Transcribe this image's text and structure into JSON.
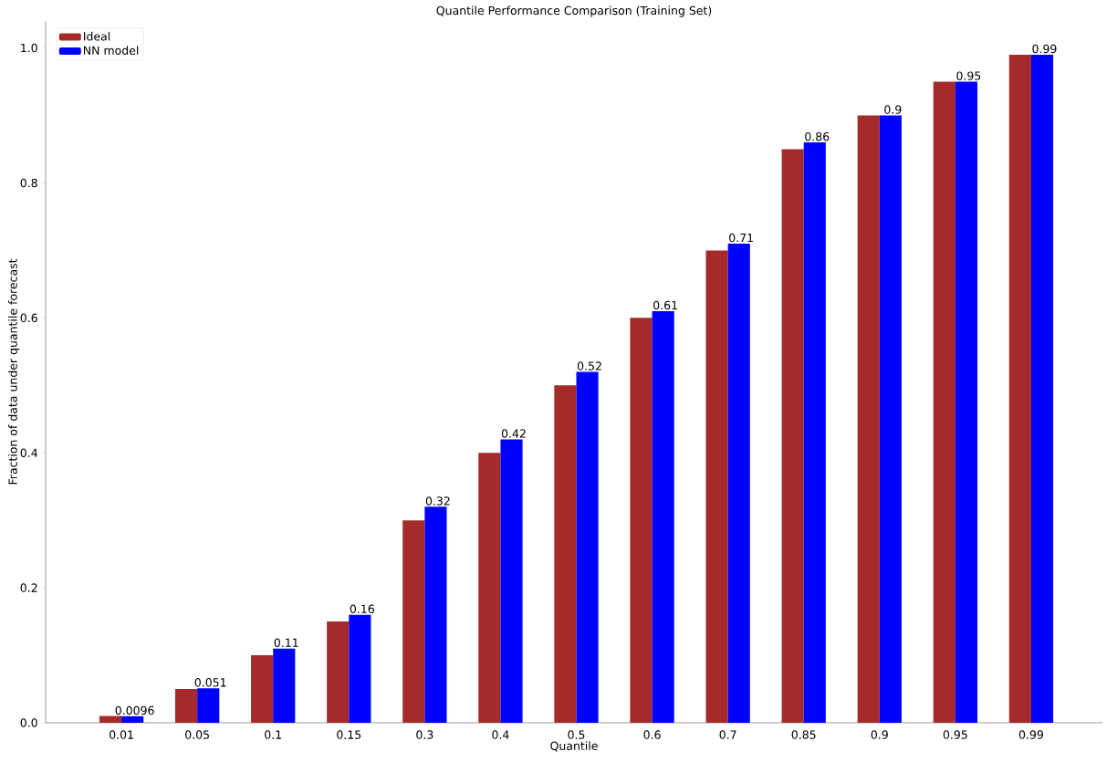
{
  "chart_data": {
    "type": "bar",
    "title": "Quantile Performance Comparison (Training Set)",
    "xlabel": "Quantile",
    "ylabel": "Fraction of data under quantile forecast",
    "categories": [
      "0.01",
      "0.05",
      "0.1",
      "0.15",
      "0.3",
      "0.4",
      "0.5",
      "0.6",
      "0.7",
      "0.85",
      "0.9",
      "0.95",
      "0.99"
    ],
    "series": [
      {
        "name": "Ideal",
        "color": "#a52a2a",
        "values": [
          0.01,
          0.05,
          0.1,
          0.15,
          0.3,
          0.4,
          0.5,
          0.6,
          0.7,
          0.85,
          0.9,
          0.95,
          0.99
        ]
      },
      {
        "name": "NN model",
        "color": "#0000ff",
        "values": [
          0.0096,
          0.051,
          0.11,
          0.16,
          0.32,
          0.42,
          0.52,
          0.61,
          0.71,
          0.86,
          0.9,
          0.95,
          0.99
        ],
        "value_labels": [
          "0.0096",
          "0.051",
          "0.11",
          "0.16",
          "0.32",
          "0.42",
          "0.52",
          "0.61",
          "0.71",
          "0.86",
          "0.9",
          "0.95",
          "0.99"
        ]
      }
    ],
    "ylim": [
      0,
      1.04
    ],
    "yticks": [
      {
        "value": 0,
        "label": "0.0"
      },
      0.2,
      0.4,
      0.6,
      0.8,
      {
        "value": 1,
        "label": "1.0"
      }
    ],
    "legend": "top left"
  }
}
